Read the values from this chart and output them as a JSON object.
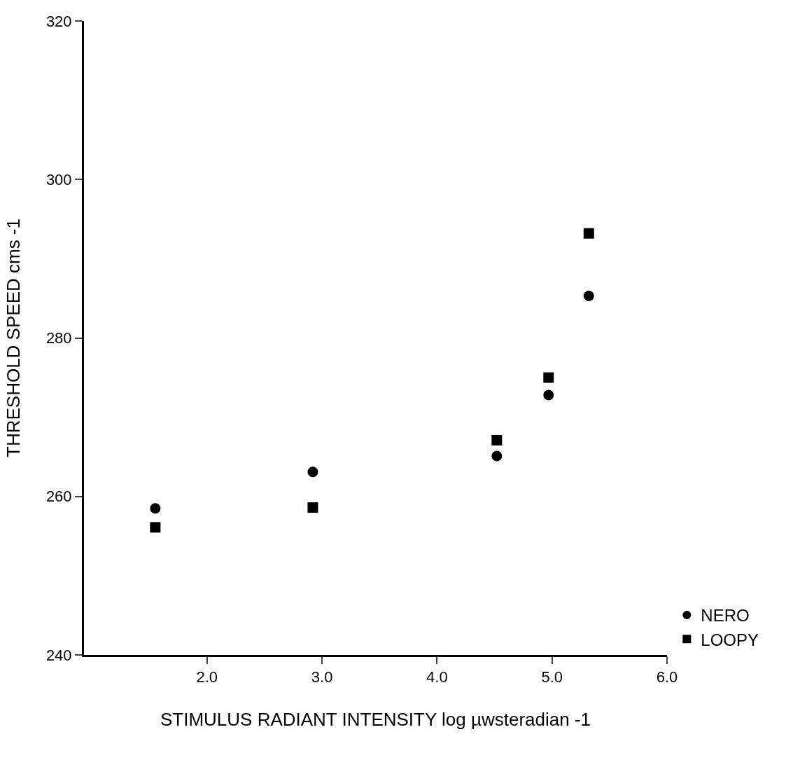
{
  "chart_data": {
    "type": "scatter",
    "xlabel": "STIMULUS RADIANT INTENSITY log µwsteradian -1",
    "ylabel": "THRESHOLD SPEED cms -1",
    "xlim": [
      0.93,
      6.0
    ],
    "xticks": [
      {
        "value": 2,
        "label": "2.0"
      },
      {
        "value": 3,
        "label": "3.0"
      },
      {
        "value": 4,
        "label": "4.0"
      },
      {
        "value": 5,
        "label": "5.0"
      },
      {
        "value": 6,
        "label": "6.0"
      }
    ],
    "ylim": [
      240,
      320
    ],
    "yticks": [
      240,
      260,
      280,
      300,
      320
    ],
    "legend": "bottom right",
    "series": [
      {
        "name": "NERO",
        "color": "#000000",
        "marker": "circle",
        "x": [
          1.55,
          2.92,
          4.52,
          4.97,
          5.32
        ],
        "values": [
          258.5,
          263.1,
          265.1,
          272.8,
          285.3
        ]
      },
      {
        "name": "LOOPY",
        "color": "#000000",
        "marker": "square",
        "x": [
          1.55,
          2.92,
          4.52,
          4.97,
          5.32
        ],
        "values": [
          256.1,
          258.6,
          267.1,
          275.0,
          293.2
        ]
      }
    ]
  }
}
